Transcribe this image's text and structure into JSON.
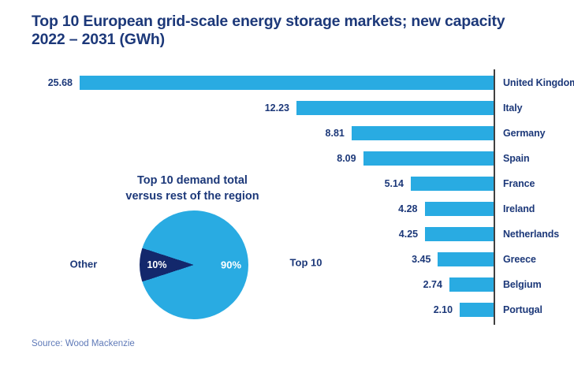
{
  "page": {
    "title_lines": {
      "0": "Top 10 European grid-scale energy storage markets; new capacity",
      "1": "2022 – 2031 (GWh)"
    },
    "source": "Source: Wood Mackenzie"
  },
  "colors": {
    "bar_cyan": "#29abe2",
    "pie_light": "#29abe2",
    "pie_dark": "#13286c",
    "navy_text": "#1c3879",
    "axis_line": "#404040",
    "source_text": "#5f7ab8"
  },
  "chart_data": [
    {
      "type": "bar",
      "orientation": "horizontal",
      "title": "Top 10 European grid-scale energy storage markets; new capacity 2022 – 2031 (GWh)",
      "unit": "GWh",
      "categories": [
        "United Kingdom",
        "Italy",
        "Germany",
        "Spain",
        "France",
        "Ireland",
        "Netherlands",
        "Greece",
        "Belgium",
        "Portugal"
      ],
      "values": [
        25.68,
        12.23,
        8.81,
        8.09,
        5.14,
        4.28,
        4.25,
        3.45,
        2.74,
        2.1
      ],
      "value_labels": [
        "25.68",
        "12.23",
        "8.81",
        "8.09",
        "5.14",
        "4.28",
        "4.25",
        "3.45",
        "2.74",
        "2.10"
      ],
      "xlim": [
        0,
        25.68
      ],
      "bar_color": "#29abe2",
      "grid": false,
      "legend": false
    },
    {
      "type": "pie",
      "title": "Top 10 demand total versus rest of the region",
      "title_lines": {
        "0": "Top 10 demand total",
        "1": "versus rest of the region"
      },
      "slices": [
        {
          "label": "Top 10",
          "value": 90,
          "display": "90%",
          "color": "#29abe2"
        },
        {
          "label": "Other",
          "value": 10,
          "display": "10%",
          "color": "#13286c"
        }
      ],
      "legend": false
    }
  ]
}
